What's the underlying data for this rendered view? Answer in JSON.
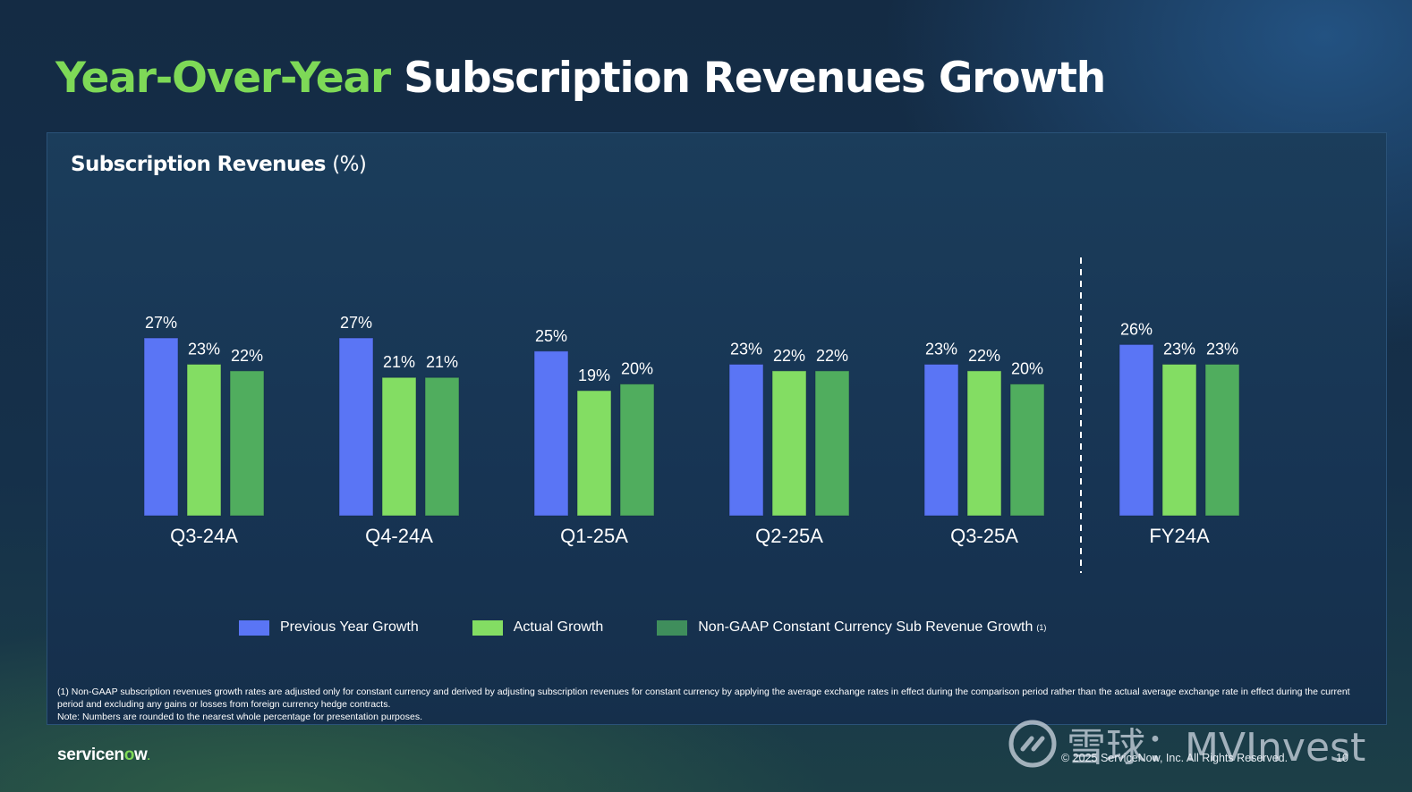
{
  "title": {
    "accent": "Year-Over-Year",
    "rest": "Subscription Revenues Growth"
  },
  "panel": {
    "subtitle": "Subscription Revenues",
    "subtitle_unit": "(%)"
  },
  "legend": [
    {
      "label": "Previous Year Growth",
      "color": "#5a75f5"
    },
    {
      "label": "Actual Growth",
      "color": "#83dd63"
    },
    {
      "label": "Non-GAAP Constant Currency Sub Revenue Growth",
      "color": "#3f8e5c",
      "sup": "(1)"
    }
  ],
  "chart_data": {
    "type": "bar",
    "title": "Subscription Revenues (%)",
    "xlabel": "",
    "ylabel": "",
    "ylim": [
      0,
      30
    ],
    "grid": false,
    "legend_position": "bottom",
    "categories": [
      "Q3-24A",
      "Q4-24A",
      "Q1-25A",
      "Q2-25A",
      "Q3-25A",
      "FY24A"
    ],
    "divider_before": "FY24A",
    "series": [
      {
        "name": "Previous Year Growth",
        "color": "#5a75f5",
        "values": [
          27,
          27,
          25,
          23,
          23,
          26
        ]
      },
      {
        "name": "Actual Growth",
        "color": "#83dd63",
        "values": [
          23,
          21,
          19,
          22,
          22,
          23
        ]
      },
      {
        "name": "Non-GAAP Constant Currency Sub Revenue Growth",
        "color": "#50ad5e",
        "values": [
          22,
          21,
          20,
          22,
          20,
          23
        ]
      }
    ],
    "value_suffix": "%"
  },
  "footnote": {
    "line1": "(1) Non-GAAP subscription revenues growth rates are adjusted only for constant currency and derived by adjusting subscription revenues for constant currency by applying the average exchange rates in effect during the comparison period rather than the actual average exchange rate in effect during the current period and excluding any gains or losses from foreign currency hedge contracts.",
    "line2": "Note: Numbers are rounded to the nearest whole percentage for presentation purposes."
  },
  "footer": {
    "logo_part1": "servicen",
    "logo_o": "o",
    "logo_part2": "w",
    "logo_dot": ".",
    "copyright": "© 2025 ServiceNow, Inc. All Rights Reserved.",
    "page_number": "10"
  },
  "watermark": {
    "text": "雪球：MVInvest",
    "icon": "xueqiu-logo-icon"
  }
}
